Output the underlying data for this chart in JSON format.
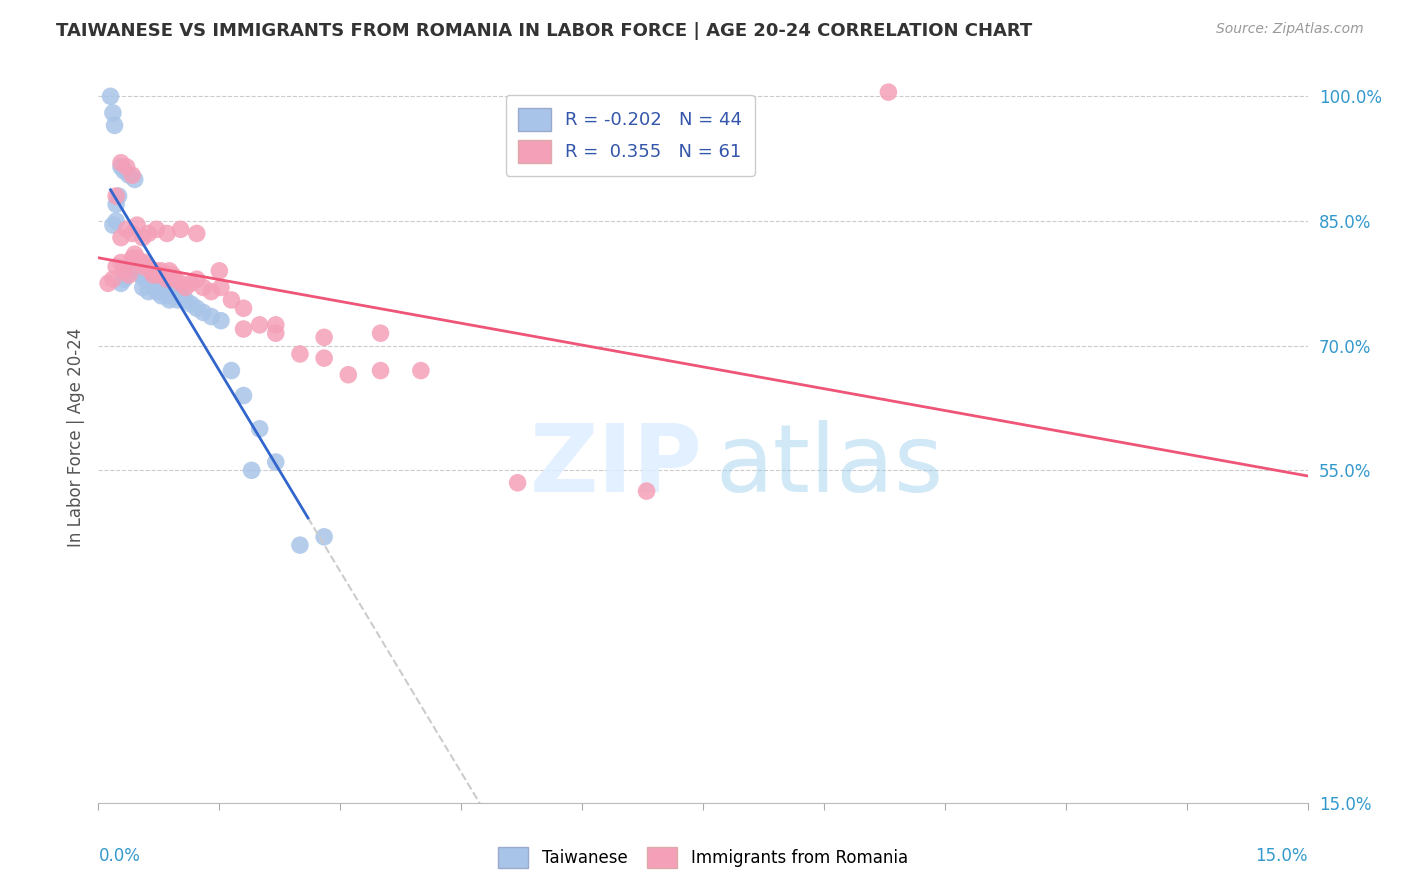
{
  "title": "TAIWANESE VS IMMIGRANTS FROM ROMANIA IN LABOR FORCE | AGE 20-24 CORRELATION CHART",
  "source": "Source: ZipAtlas.com",
  "ylabel": "In Labor Force | Age 20-24",
  "right_yticks": [
    15.0,
    55.0,
    70.0,
    85.0,
    100.0
  ],
  "xmin": 0.0,
  "xmax": 15.0,
  "ymin": 15.0,
  "ymax": 103.0,
  "legend_taiwanese_r": "-0.202",
  "legend_taiwanese_n": "44",
  "legend_romania_r": "0.355",
  "legend_romania_n": "61",
  "taiwanese_color": "#a8c4e8",
  "romanian_color": "#f4a0b8",
  "taiwanese_line_color": "#3366cc",
  "romanian_line_color": "#ee5577",
  "dashed_line_color": "#cccccc",
  "taiwanese_x": [
    0.18,
    0.22,
    0.28,
    0.32,
    0.38,
    0.42,
    0.48,
    0.52,
    0.55,
    0.58,
    0.62,
    0.68,
    0.72,
    0.75,
    0.78,
    0.82,
    0.85,
    0.88,
    0.92,
    0.95,
    0.98,
    1.02,
    1.08,
    1.15,
    1.22,
    1.3,
    1.4,
    1.52,
    1.65,
    1.8,
    2.0,
    2.2,
    2.5,
    0.15,
    0.18,
    0.2,
    0.22,
    0.25,
    0.28,
    0.32,
    0.38,
    0.45,
    1.9,
    2.8
  ],
  "taiwanese_y": [
    84.5,
    85.0,
    77.5,
    78.0,
    79.5,
    80.0,
    79.0,
    78.5,
    77.0,
    78.0,
    76.5,
    77.5,
    76.5,
    77.0,
    76.0,
    76.5,
    76.0,
    75.5,
    76.5,
    76.0,
    75.5,
    76.0,
    75.5,
    75.0,
    74.5,
    74.0,
    73.5,
    73.0,
    67.0,
    64.0,
    60.0,
    56.0,
    46.0,
    100.0,
    98.0,
    96.5,
    87.0,
    88.0,
    91.5,
    91.0,
    90.5,
    90.0,
    55.0,
    47.0
  ],
  "romanian_x": [
    0.12,
    0.18,
    0.22,
    0.28,
    0.32,
    0.38,
    0.42,
    0.45,
    0.48,
    0.52,
    0.55,
    0.58,
    0.62,
    0.65,
    0.68,
    0.72,
    0.75,
    0.78,
    0.82,
    0.85,
    0.88,
    0.92,
    0.95,
    1.02,
    1.08,
    1.15,
    1.22,
    1.3,
    1.4,
    1.52,
    1.65,
    1.8,
    2.0,
    2.2,
    2.5,
    2.8,
    3.1,
    3.5,
    4.0,
    0.28,
    0.35,
    0.42,
    0.48,
    0.55,
    0.62,
    0.72,
    0.85,
    1.02,
    1.22,
    1.5,
    1.8,
    2.2,
    2.8,
    3.5,
    5.2,
    6.8,
    9.8,
    0.22,
    0.28,
    0.35,
    0.42
  ],
  "romanian_y": [
    77.5,
    78.0,
    79.5,
    80.0,
    79.0,
    78.5,
    80.5,
    81.0,
    80.5,
    80.0,
    79.5,
    80.0,
    79.5,
    79.0,
    78.5,
    79.0,
    78.5,
    79.0,
    78.5,
    78.0,
    79.0,
    78.5,
    78.0,
    77.5,
    77.0,
    77.5,
    78.0,
    77.0,
    76.5,
    77.0,
    75.5,
    74.5,
    72.5,
    71.5,
    69.0,
    68.5,
    66.5,
    71.5,
    67.0,
    83.0,
    84.0,
    83.5,
    84.5,
    83.0,
    83.5,
    84.0,
    83.5,
    84.0,
    83.5,
    79.0,
    72.0,
    72.5,
    71.0,
    67.0,
    53.5,
    52.5,
    100.5,
    88.0,
    92.0,
    91.5,
    90.5
  ]
}
